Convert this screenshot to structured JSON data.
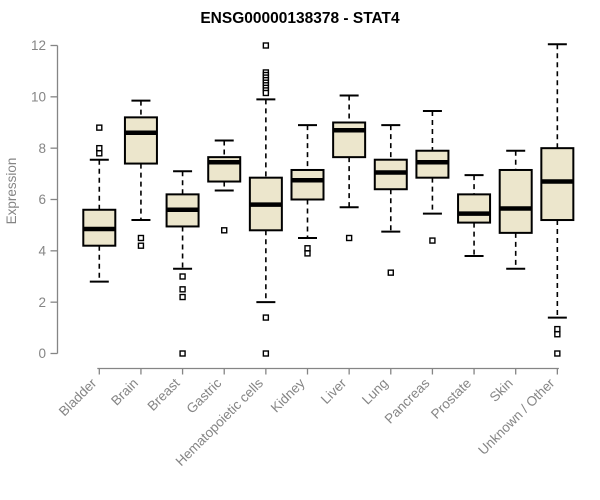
{
  "chart_data": {
    "type": "boxplot",
    "title": "ENSG00000138378 - STAT4",
    "ylabel": "Expression",
    "xlabel": "",
    "ylim": [
      0,
      12.2
    ],
    "yticks": [
      0,
      2,
      4,
      6,
      8,
      10,
      12
    ],
    "grid": false,
    "legend": "none",
    "categories": [
      "Bladder",
      "Brain",
      "Breast",
      "Gastric",
      "Hematopoietic cells",
      "Kidney",
      "Liver",
      "Lung",
      "Pancreas",
      "Prostate",
      "Skin",
      "Unknown / Other"
    ],
    "series": [
      {
        "name": "Bladder",
        "whisker_low": 2.8,
        "q1": 4.2,
        "median": 4.85,
        "q3": 5.6,
        "whisker_high": 7.55,
        "outliers": [
          8.8,
          8.0,
          7.8
        ]
      },
      {
        "name": "Brain",
        "whisker_low": 5.2,
        "q1": 7.4,
        "median": 8.6,
        "q3": 9.2,
        "whisker_high": 9.85,
        "outliers": [
          4.5,
          4.2
        ]
      },
      {
        "name": "Breast",
        "whisker_low": 3.3,
        "q1": 4.95,
        "median": 5.6,
        "q3": 6.2,
        "whisker_high": 7.1,
        "outliers": [
          3.0,
          2.5,
          2.2,
          0
        ]
      },
      {
        "name": "Gastric",
        "whisker_low": 6.35,
        "q1": 6.7,
        "median": 7.45,
        "q3": 7.65,
        "whisker_high": 8.3,
        "outliers": [
          4.8
        ]
      },
      {
        "name": "Hematopoietic cells",
        "whisker_low": 2.0,
        "q1": 4.8,
        "median": 5.8,
        "q3": 6.85,
        "whisker_high": 9.9,
        "outliers": [
          12.0,
          10.95,
          10.85,
          10.75,
          10.65,
          10.55,
          10.45,
          10.35,
          10.25,
          10.15,
          1.4,
          0
        ]
      },
      {
        "name": "Kidney",
        "whisker_low": 4.5,
        "q1": 6.0,
        "median": 6.75,
        "q3": 7.15,
        "whisker_high": 8.9,
        "outliers": [
          4.1,
          3.9
        ]
      },
      {
        "name": "Liver",
        "whisker_low": 5.7,
        "q1": 7.65,
        "median": 8.7,
        "q3": 9.0,
        "whisker_high": 10.05,
        "outliers": [
          4.5
        ]
      },
      {
        "name": "Lung",
        "whisker_low": 4.75,
        "q1": 6.4,
        "median": 7.05,
        "q3": 7.55,
        "whisker_high": 8.9,
        "outliers": [
          3.15
        ]
      },
      {
        "name": "Pancreas",
        "whisker_low": 5.45,
        "q1": 6.85,
        "median": 7.45,
        "q3": 7.9,
        "whisker_high": 9.45,
        "outliers": [
          4.4
        ]
      },
      {
        "name": "Prostate",
        "whisker_low": 3.8,
        "q1": 5.1,
        "median": 5.45,
        "q3": 6.2,
        "whisker_high": 6.95,
        "outliers": []
      },
      {
        "name": "Skin",
        "whisker_low": 3.3,
        "q1": 4.7,
        "median": 5.65,
        "q3": 7.15,
        "whisker_high": 7.9,
        "outliers": []
      },
      {
        "name": "Unknown / Other",
        "whisker_low": 1.4,
        "q1": 5.2,
        "median": 6.7,
        "q3": 8.0,
        "whisker_high": 12.05,
        "outliers": [
          0.95,
          0.75,
          0
        ]
      }
    ],
    "colors": {
      "box_fill": "#ECE6CC",
      "box_border": "#000000",
      "median": "#000000",
      "whisker": "#000000",
      "outlier_fill": "#FFFFFF",
      "outlier_border": "#000000",
      "axis": "#858585",
      "label": "#858585",
      "title": "#000000",
      "background": "#FFFFFF"
    }
  }
}
